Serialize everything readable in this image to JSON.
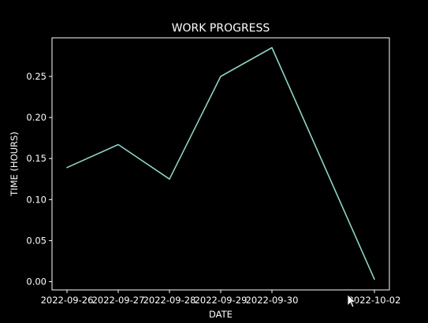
{
  "chart_data": {
    "type": "line",
    "title": "WORK PROGRESS",
    "xlabel": "DATE",
    "ylabel": "TIME (HOURS)",
    "x": [
      "2022-09-26",
      "2022-09-27",
      "2022-09-28",
      "2022-09-29",
      "2022-09-30",
      "2022-10-02"
    ],
    "x_tick_labels": [
      "2022-09-26",
      "2022-09-27",
      "2022-09-28",
      "2022-09-29",
      "2022-09-30",
      "2022-10-02"
    ],
    "y_ticks": [
      "0.00",
      "0.05",
      "0.10",
      "0.15",
      "0.20",
      "0.25"
    ],
    "ylim": [
      -0.01,
      0.297
    ],
    "series": [
      {
        "color": "#8dd3c7",
        "values": [
          0.139,
          0.167,
          0.125,
          0.25,
          0.285,
          0.003
        ]
      }
    ],
    "grid": false,
    "background": "#000000",
    "foreground": "#ffffff"
  }
}
